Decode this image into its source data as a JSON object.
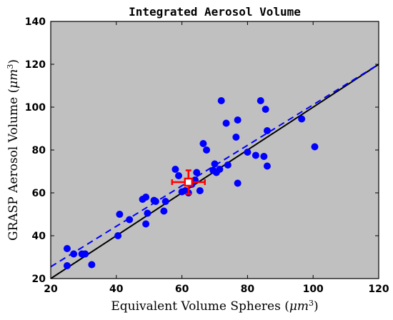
{
  "chart_data": {
    "type": "scatter",
    "title": "Integrated Aerosol Volume",
    "xlabel": "Equivalent Volume Spheres (μm³)",
    "ylabel": "GRASP Aerosol Volume (μm³)",
    "xlim": [
      20,
      120
    ],
    "ylim": [
      20,
      140
    ],
    "xticks": [
      20,
      40,
      60,
      80,
      100,
      120
    ],
    "yticks": [
      20,
      40,
      60,
      80,
      100,
      120,
      140
    ],
    "grid": false,
    "background_color": "#c0c0c0",
    "series": [
      {
        "color": "#0000ff",
        "marker": "circle",
        "points": [
          [
            25,
            34
          ],
          [
            25,
            26
          ],
          [
            27,
            31.5
          ],
          [
            29.5,
            31.5
          ],
          [
            30.5,
            31.5
          ],
          [
            32.5,
            26.5
          ],
          [
            40.5,
            40
          ],
          [
            41,
            50
          ],
          [
            44,
            47.5
          ],
          [
            48,
            57
          ],
          [
            49,
            58
          ],
          [
            49,
            45.5
          ],
          [
            49.5,
            50.5
          ],
          [
            51.5,
            56.5
          ],
          [
            52,
            56
          ],
          [
            54.5,
            51.5
          ],
          [
            55,
            56
          ],
          [
            58,
            71
          ],
          [
            59,
            68
          ],
          [
            60,
            60.5
          ],
          [
            61,
            61
          ],
          [
            62,
            60
          ],
          [
            63,
            64
          ],
          [
            64,
            66
          ],
          [
            64.5,
            69.5
          ],
          [
            65.5,
            61
          ],
          [
            66.5,
            83
          ],
          [
            67.5,
            80
          ],
          [
            69.5,
            70.5
          ],
          [
            70,
            73.5
          ],
          [
            70.5,
            69.5
          ],
          [
            71.5,
            71
          ],
          [
            72,
            103
          ],
          [
            73.5,
            92.5
          ],
          [
            74,
            73
          ],
          [
            76.5,
            86
          ],
          [
            77,
            94
          ],
          [
            77,
            64.5
          ],
          [
            80,
            79
          ],
          [
            82.5,
            77.5
          ],
          [
            84,
            103
          ],
          [
            85,
            77
          ],
          [
            85.5,
            99
          ],
          [
            86,
            89
          ],
          [
            86,
            72.5
          ],
          [
            96.5,
            94.5
          ],
          [
            100.5,
            81.5
          ]
        ]
      }
    ],
    "fit_lines": [
      {
        "style": "solid",
        "color": "#000000",
        "x": [
          20,
          120
        ],
        "y": [
          20,
          120
        ]
      },
      {
        "style": "dashed",
        "color": "#0000ff",
        "x": [
          20,
          120
        ],
        "y": [
          25.5,
          120
        ]
      }
    ],
    "mean_point": {
      "x": 62,
      "y": 65,
      "xerr": 5,
      "yerr": 5.5,
      "color": "#ff0000",
      "face_color": "#ffffff"
    }
  }
}
